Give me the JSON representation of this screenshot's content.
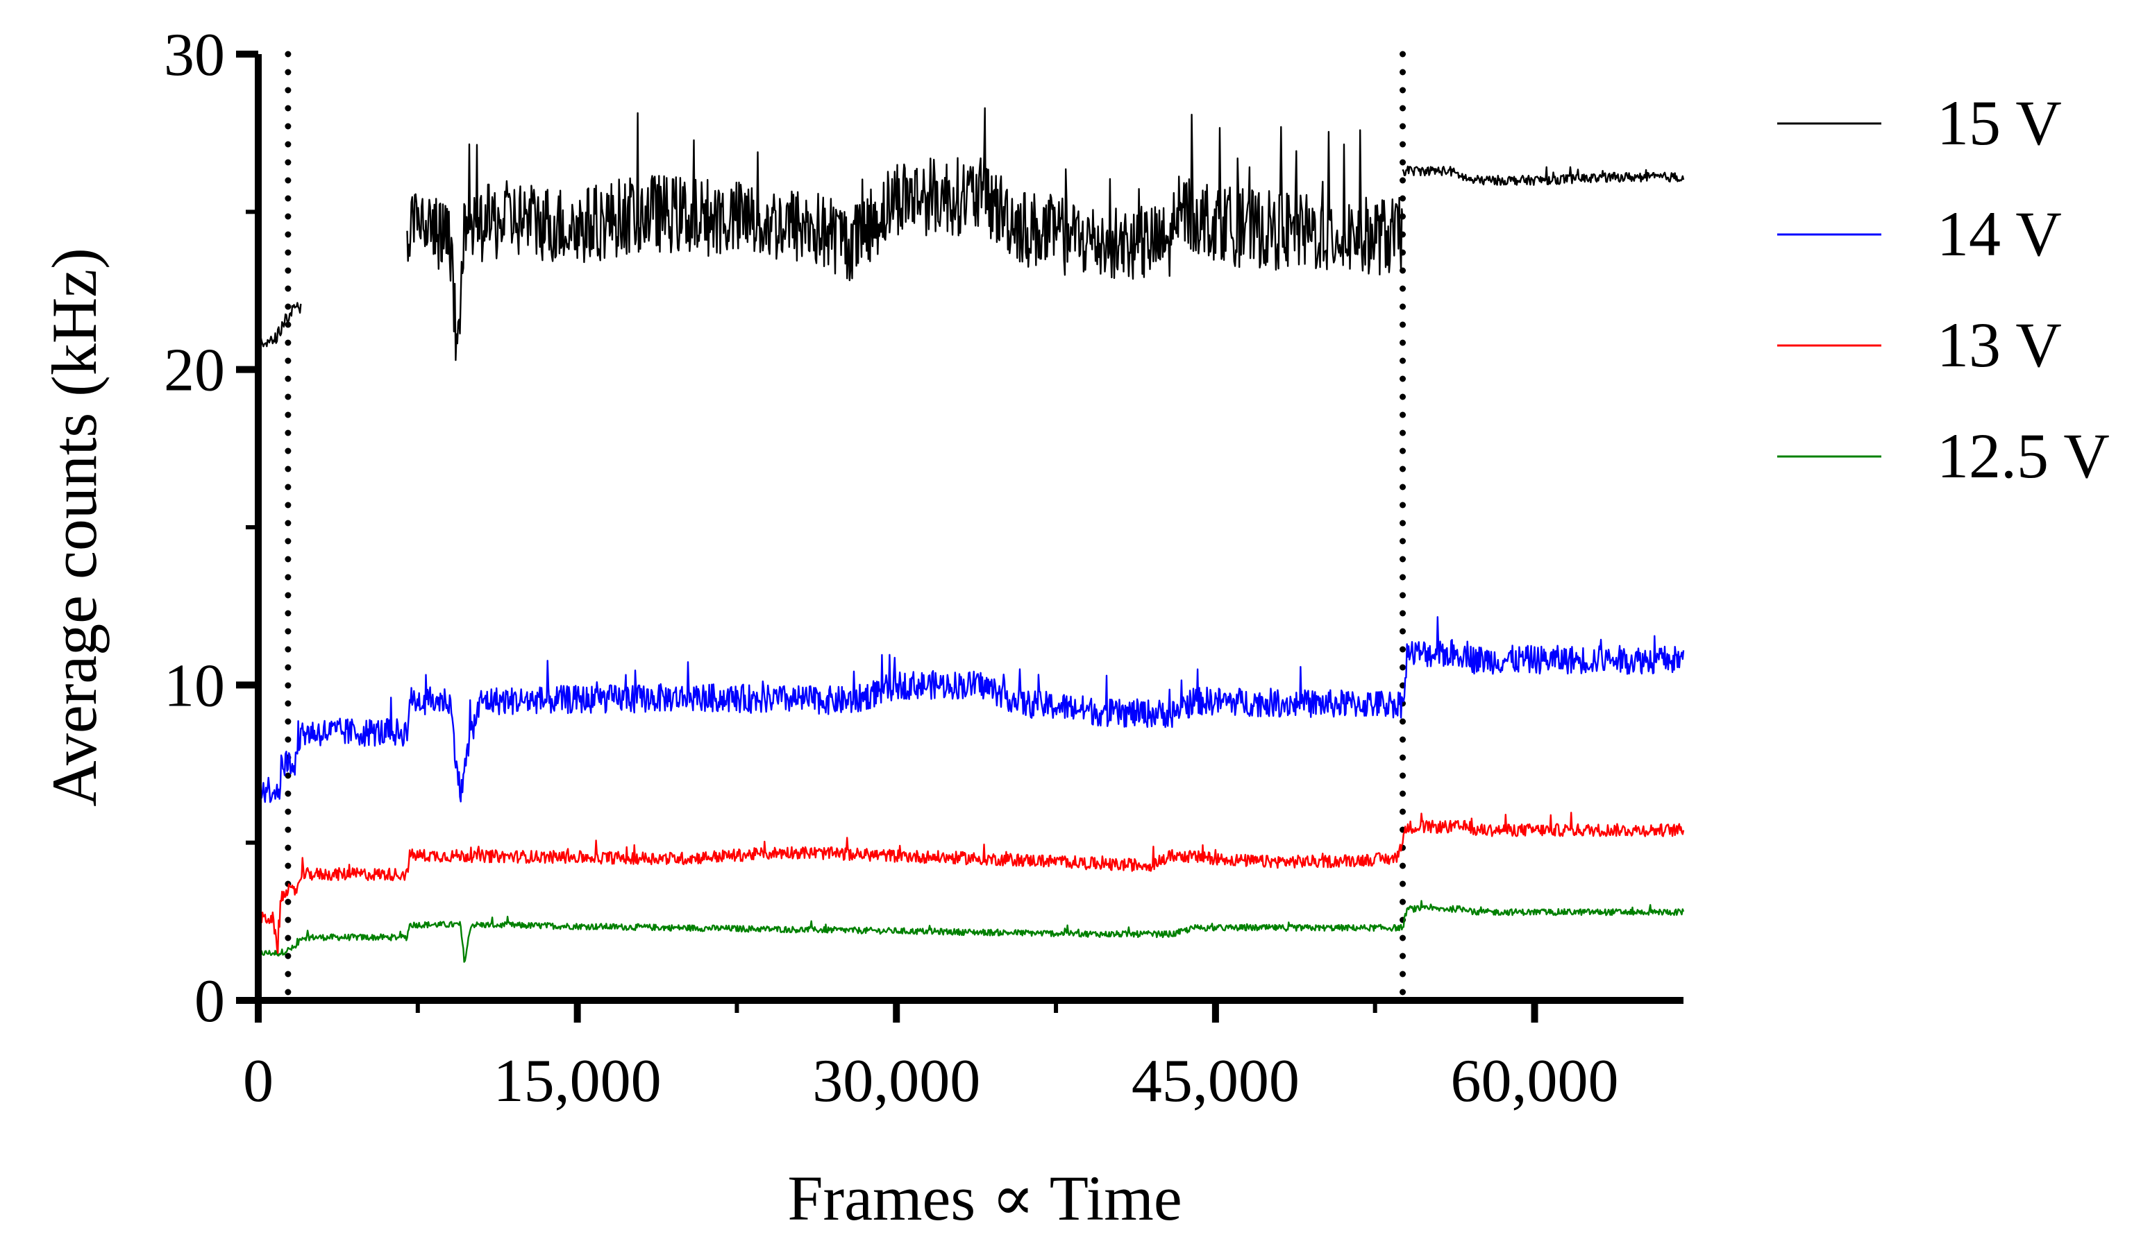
{
  "chart_data": {
    "type": "line",
    "title": "",
    "xlabel": "Frames ∝ Time",
    "ylabel": "Average counts (kHz)",
    "xlim": [
      0,
      67000
    ],
    "ylim": [
      0,
      30
    ],
    "x_ticks": [
      0,
      15000,
      30000,
      45000,
      60000
    ],
    "x_tick_labels": [
      "0",
      "15,000",
      "30,000",
      "45,000",
      "60,000"
    ],
    "y_ticks": [
      0,
      10,
      20,
      30
    ],
    "y_tick_labels": [
      "0",
      "10",
      "20",
      "30"
    ],
    "grid": false,
    "legend_position": "right",
    "vertical_markers": [
      1400,
      53800
    ],
    "series": [
      {
        "name": "15 V",
        "color": "#000000",
        "segments": [
          {
            "x": [
              0,
              500,
              800,
              1000,
              1200,
              1500,
              1700,
              2000
            ],
            "y": [
              21.0,
              20.8,
              21.0,
              21.2,
              21.5,
              21.8,
              21.9,
              22.0
            ],
            "noise": 0.4
          },
          {
            "x": [
              7000,
              8000,
              9000,
              9400,
              9600,
              10000,
              12000,
              15000,
              18000,
              22000,
              26000,
              28000,
              30000,
              34000,
              36000,
              38000,
              40000,
              43000,
              43500,
              46000,
              50000,
              53800
            ],
            "y": [
              24.5,
              24.5,
              24.0,
              20.0,
              24.0,
              24.5,
              24.8,
              24.5,
              25.0,
              24.8,
              24.5,
              24.0,
              25.5,
              25.5,
              24.5,
              24.2,
              24.0,
              24.0,
              25.0,
              24.5,
              24.3,
              24.2
            ],
            "noise": 2.5
          },
          {
            "x": [
              53800,
              54000,
              56000,
              57000,
              60000,
              64000,
              67000
            ],
            "y": [
              26.3,
              26.3,
              26.3,
              26.0,
              26.0,
              26.1,
              26.1
            ],
            "noise": 0.3
          }
        ]
      },
      {
        "name": "14 V",
        "color": "#0000ff",
        "segments": [
          {
            "x": [
              0,
              1000,
              1100,
              1800,
              2000,
              7000,
              7100,
              9000,
              9500,
              10000,
              10500,
              12000,
              20000,
              28000,
              30000,
              34000,
              36000,
              38000,
              40000,
              43000,
              44000,
              50000,
              53800,
              54000,
              57000,
              57100,
              67000
            ],
            "y": [
              6.7,
              6.7,
              7.5,
              7.6,
              8.5,
              8.5,
              9.5,
              9.5,
              6.5,
              8.5,
              9.5,
              9.5,
              9.6,
              9.5,
              10.0,
              10.0,
              9.4,
              9.3,
              9.1,
              9.1,
              9.5,
              9.4,
              9.4,
              11.0,
              11.0,
              10.8,
              10.8
            ],
            "noise": 0.9
          }
        ]
      },
      {
        "name": "13 V",
        "color": "#ff0000",
        "segments": [
          {
            "x": [
              0,
              700,
              900,
              1100,
              1300,
              1800,
              2000,
              7000,
              7100,
              20000,
              25000,
              38000,
              40000,
              42000,
              43000,
              47000,
              50000,
              53500,
              54000,
              57000,
              57100,
              67000
            ],
            "y": [
              2.6,
              2.6,
              1.5,
              3.3,
              3.4,
              3.5,
              4.0,
              4.0,
              4.6,
              4.5,
              4.7,
              4.4,
              4.3,
              4.3,
              4.6,
              4.4,
              4.4,
              4.5,
              5.5,
              5.5,
              5.4,
              5.4
            ],
            "noise": 0.4
          }
        ]
      },
      {
        "name": "12.5 V",
        "color": "#008000",
        "segments": [
          {
            "x": [
              0,
              1000,
              1400,
              1800,
              2000,
              7000,
              7100,
              9500,
              9700,
              10000,
              20000,
              30000,
              40000,
              43000,
              44000,
              53800,
              54000,
              57000,
              57100,
              67000
            ],
            "y": [
              1.5,
              1.5,
              1.6,
              1.7,
              2.0,
              2.0,
              2.4,
              2.4,
              1.2,
              2.4,
              2.3,
              2.2,
              2.1,
              2.1,
              2.3,
              2.3,
              2.9,
              2.9,
              2.8,
              2.8
            ],
            "noise": 0.2
          }
        ]
      }
    ]
  }
}
